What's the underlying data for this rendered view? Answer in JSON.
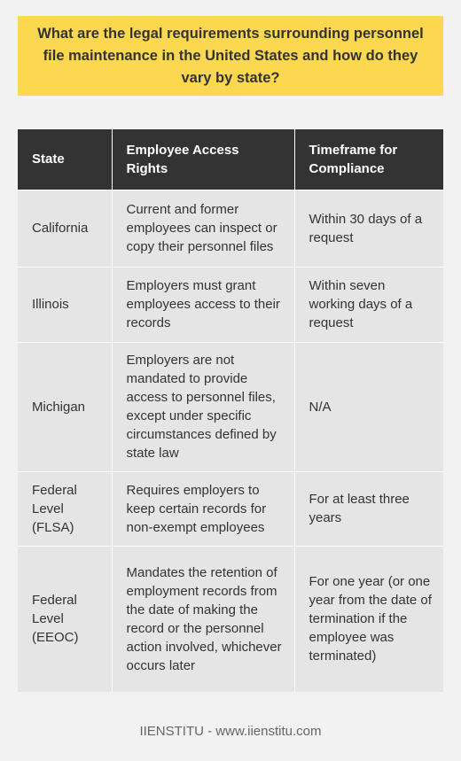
{
  "title": "What are the legal requirements surrounding personnel file maintenance in the United States and how do they vary by state?",
  "table": {
    "headers": [
      "State",
      "Employee Access Rights",
      "Timeframe for Compliance"
    ],
    "rows": [
      [
        "California",
        "Current and former employees can inspect or copy their personnel files",
        "Within 30 days of a request"
      ],
      [
        "Illinois",
        "Employers must grant employees access to their records",
        "Within seven working days of a request"
      ],
      [
        "Michigan",
        "Employers are not mandated to provide access to personnel files, except under specific circumstances defined by state law",
        "N/A"
      ],
      [
        "Federal Level (FLSA)",
        "Requires employers to keep certain records for non-exempt employees",
        "For at least three years"
      ],
      [
        "Federal Level (EEOC)",
        "Mandates the retention of employment records from the date of making the record or the personnel action involved, whichever occurs later",
        "For one year (or one year from the date of termination if the employee was terminated)"
      ]
    ]
  },
  "footer": "IIENSTITU - www.iienstitu.com",
  "colors": {
    "title_background": "#fcd851",
    "header_background": "#333333",
    "row_background": "#e5e5e5",
    "page_background": "#f2f2f2"
  }
}
